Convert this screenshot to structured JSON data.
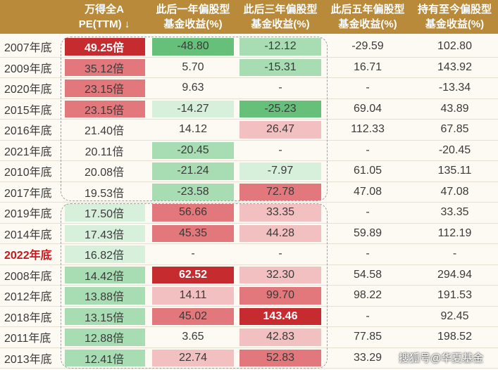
{
  "header": {
    "pe_line1": "万得全A",
    "pe_line2": "PE(TTM) ↓",
    "y1_line1": "此后一年偏股型",
    "y1_line2": "基金收益(%)",
    "y3_line1": "此后三年偏股型",
    "y3_line2": "基金收益(%)",
    "y5_line1": "此后五年偏股型",
    "y5_line2": "基金收益(%)",
    "hold_line1": "持有至今偏股型",
    "hold_line2": "基金收益(%)"
  },
  "colors": {
    "header_bg": "#b88a3a",
    "red_dark": "#c62b30",
    "red_mid": "#e2787c",
    "red_light": "#f2c0c0",
    "green_dark": "#66c07a",
    "green_mid": "#a8dcb3",
    "green_light": "#d6f0dc"
  },
  "rows": [
    {
      "year": "2007年底",
      "pe": "49.25倍",
      "y1": "-48.80",
      "y3": "-12.12",
      "y5": "-29.59",
      "hold": "102.80",
      "pe_c": "red_dark",
      "y1_c": "green_dark",
      "y3_c": "green_mid",
      "pe_bold": true,
      "y1_bold": false,
      "y3_bold": false
    },
    {
      "year": "2009年底",
      "pe": "35.12倍",
      "y1": "5.70",
      "y3": "-15.31",
      "y5": "16.71",
      "hold": "143.92",
      "pe_c": "red_mid",
      "y1_c": "",
      "y3_c": "green_mid"
    },
    {
      "year": "2020年底",
      "pe": "23.15倍",
      "y1": "9.63",
      "y3": "-",
      "y5": "-",
      "hold": "-13.34",
      "pe_c": "red_mid",
      "y1_c": "",
      "y3_c": ""
    },
    {
      "year": "2015年底",
      "pe": "23.15倍",
      "y1": "-14.27",
      "y3": "-25.23",
      "y5": "69.04",
      "hold": "43.89",
      "pe_c": "red_mid",
      "y1_c": "green_light",
      "y3_c": "green_dark"
    },
    {
      "year": "2016年底",
      "pe": "21.40倍",
      "y1": "14.12",
      "y3": "26.47",
      "y5": "112.33",
      "hold": "67.85",
      "pe_c": "",
      "y1_c": "",
      "y3_c": "red_light"
    },
    {
      "year": "2021年底",
      "pe": "20.11倍",
      "y1": "-20.45",
      "y3": "-",
      "y5": "-",
      "hold": "-20.45",
      "pe_c": "",
      "y1_c": "green_mid",
      "y3_c": ""
    },
    {
      "year": "2010年底",
      "pe": "20.08倍",
      "y1": "-21.24",
      "y3": "-7.97",
      "y5": "61.05",
      "hold": "135.11",
      "pe_c": "",
      "y1_c": "green_mid",
      "y3_c": "green_light"
    },
    {
      "year": "2017年底",
      "pe": "19.53倍",
      "y1": "-23.58",
      "y3": "72.78",
      "y5": "47.08",
      "hold": "47.08",
      "pe_c": "",
      "y1_c": "green_mid",
      "y3_c": "red_mid"
    },
    {
      "year": "2019年底",
      "pe": "17.50倍",
      "y1": "56.66",
      "y3": "33.35",
      "y5": "-",
      "hold": "33.35",
      "pe_c": "green_light",
      "y1_c": "red_mid",
      "y3_c": "red_light"
    },
    {
      "year": "2014年底",
      "pe": "17.43倍",
      "y1": "45.35",
      "y3": "44.28",
      "y5": "59.89",
      "hold": "112.19",
      "pe_c": "green_light",
      "y1_c": "red_mid",
      "y3_c": "red_light"
    },
    {
      "year": "2022年底",
      "pe": "16.82倍",
      "y1": "-",
      "y3": "-",
      "y5": "-",
      "hold": "-",
      "pe_c": "green_light",
      "y1_c": "",
      "y3_c": "",
      "year_red": true
    },
    {
      "year": "2008年底",
      "pe": "14.42倍",
      "y1": "62.52",
      "y3": "32.30",
      "y5": "54.58",
      "hold": "294.94",
      "pe_c": "green_mid",
      "y1_c": "red_dark",
      "y3_c": "red_light",
      "y1_bold": true
    },
    {
      "year": "2012年底",
      "pe": "13.88倍",
      "y1": "14.11",
      "y3": "99.70",
      "y5": "98.22",
      "hold": "191.53",
      "pe_c": "green_mid",
      "y1_c": "red_light",
      "y3_c": "red_mid"
    },
    {
      "year": "2018年底",
      "pe": "13.15倍",
      "y1": "45.02",
      "y3": "143.46",
      "y5": "-",
      "hold": "92.45",
      "pe_c": "green_mid",
      "y1_c": "red_mid",
      "y3_c": "red_dark",
      "y3_bold": true
    },
    {
      "year": "2011年底",
      "pe": "12.88倍",
      "y1": "3.65",
      "y3": "42.83",
      "y5": "77.85",
      "hold": "198.52",
      "pe_c": "green_mid",
      "y1_c": "",
      "y3_c": "red_light"
    },
    {
      "year": "2013年底",
      "pe": "12.41倍",
      "y1": "22.74",
      "y3": "52.83",
      "y5": "33.29",
      "hold": "",
      "pe_c": "green_mid",
      "y1_c": "red_light",
      "y3_c": "red_mid"
    }
  ],
  "watermark": "搜狐号@华夏基金"
}
